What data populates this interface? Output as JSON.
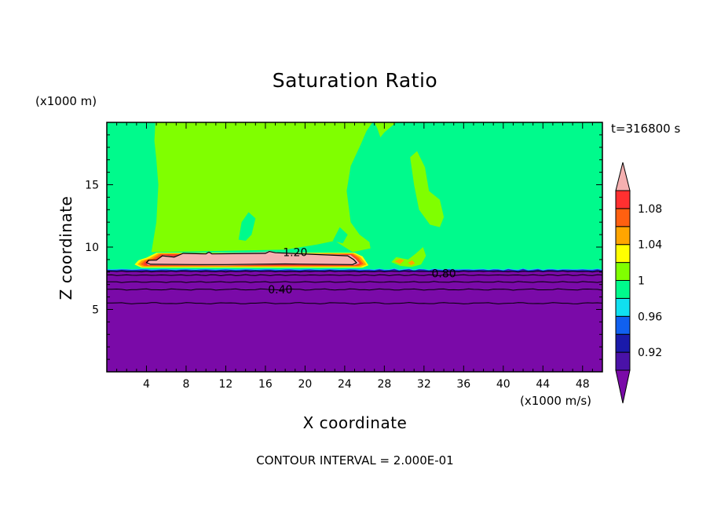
{
  "chart_data": {
    "type": "contour",
    "title": "Saturation Ratio",
    "xlabel": "X coordinate",
    "ylabel": "Z coordinate",
    "x_unit": "(x1000 m/s)",
    "y_unit": "(x1000 m)",
    "time_label": "t=316800 s",
    "footer": "CONTOUR INTERVAL = 2.000E-01",
    "xlim": [
      0,
      50
    ],
    "ylim": [
      0,
      20
    ],
    "x_ticks": [
      4,
      8,
      12,
      16,
      20,
      24,
      28,
      32,
      36,
      40,
      44,
      48
    ],
    "y_ticks": [
      5,
      10,
      15
    ],
    "contour_labels": [
      {
        "text": "1.20",
        "x": 19,
        "y": 9.6
      },
      {
        "text": "0.80",
        "x": 34,
        "y": 7.9
      },
      {
        "text": "0.40",
        "x": 17.5,
        "y": 6.6
      }
    ],
    "colorbar": {
      "boundaries": [
        0.9,
        0.92,
        0.94,
        0.96,
        0.98,
        1.0,
        1.02,
        1.04,
        1.06,
        1.08,
        1.1
      ],
      "tick_labels": [
        "0.92",
        "0.96",
        "1",
        "1.04",
        "1.08"
      ],
      "colors": [
        "#4a12a8",
        "#1a1aaa",
        "#1060f0",
        "#10e0f0",
        "#00fa8c",
        "#80ff00",
        "#ffff00",
        "#ffa500",
        "#ff6010",
        "#ff3030"
      ],
      "under_color": "#7a0aa8",
      "over_color": "#f5b0b0"
    }
  }
}
